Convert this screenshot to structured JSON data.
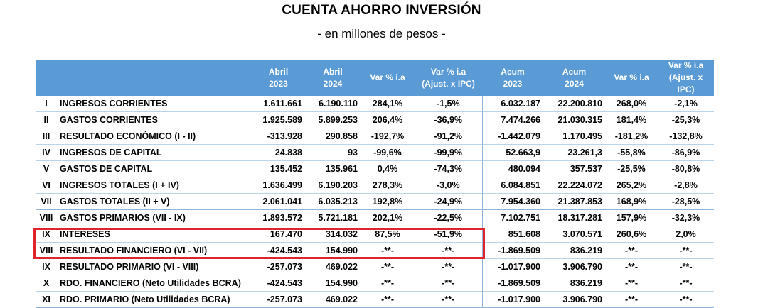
{
  "title": "CUENTA AHORRO INVERSIÓN",
  "subtitle": "- en millones de pesos -",
  "headers": [
    [
      "Abril",
      "2023"
    ],
    [
      "Abril",
      "2024"
    ],
    [
      "Var % i.a"
    ],
    [
      "Var % i.a",
      "(Ajust. x IPC)"
    ],
    [
      "Acum",
      "2023"
    ],
    [
      "Acum",
      "2024"
    ],
    [
      "Var % i.a"
    ],
    [
      "Var % i.a",
      "(Ajust. x IPC)"
    ]
  ],
  "rows": [
    {
      "rom": "I",
      "label": "INGRESOS CORRIENTES",
      "v": [
        "1.611.661",
        "6.190.110",
        "284,1%",
        "-1,5%",
        "6.032.187",
        "22.200.810",
        "268,0%",
        "-2,1%"
      ]
    },
    {
      "rom": "II",
      "label": "GASTOS CORRIENTES",
      "v": [
        "1.925.589",
        "5.899.253",
        "206,4%",
        "-36,9%",
        "7.474.266",
        "21.030.315",
        "181,4%",
        "-25,3%"
      ]
    },
    {
      "rom": "III",
      "label": "RESULTADO ECONÓMICO (I - II)",
      "v": [
        "-313.928",
        "290.858",
        "-192,7%",
        "-91,2%",
        "-1.442.079",
        "1.170.495",
        "-181,2%",
        "-132,8%"
      ]
    },
    {
      "rom": "IV",
      "label": "INGRESOS DE CAPITAL",
      "v": [
        "24.838",
        "93",
        "-99,6%",
        "-99,9%",
        "52.663,9",
        "23.261,3",
        "-55,8%",
        "-86,9%"
      ]
    },
    {
      "rom": "V",
      "label": "GASTOS DE CAPITAL",
      "v": [
        "135.452",
        "135.961",
        "0,4%",
        "-74,3%",
        "480.094",
        "357.537",
        "-25,5%",
        "-80,8%"
      ]
    },
    {
      "rom": "VI",
      "label": "INGRESOS TOTALES (I + IV)",
      "v": [
        "1.636.499",
        "6.190.203",
        "278,3%",
        "-3,0%",
        "6.084.851",
        "22.224.072",
        "265,2%",
        "-2,8%"
      ]
    },
    {
      "rom": "VII",
      "label": "GASTOS TOTALES (II + V)",
      "v": [
        "2.061.041",
        "6.035.213",
        "192,8%",
        "-24,9%",
        "7.954.360",
        "21.387.853",
        "168,9%",
        "-28,5%"
      ]
    },
    {
      "rom": "VIII",
      "label": "GASTOS PRIMARIOS (VII - IX)",
      "v": [
        "1.893.572",
        "5.721.181",
        "202,1%",
        "-22,5%",
        "7.102.751",
        "18.317.281",
        "157,9%",
        "-32,3%"
      ]
    },
    {
      "rom": "IX",
      "label": "INTERESES",
      "v": [
        "167.470",
        "314.032",
        "87,5%",
        "-51,9%",
        "851.608",
        "3.070.571",
        "260,6%",
        "2,0%"
      ]
    },
    {
      "rom": "VIII",
      "label": "RESULTADO FINANCIERO (VI - VII)",
      "v": [
        "-424.543",
        "154.990",
        "-**-",
        "-**-",
        "-1.869.509",
        "836.219",
        "-**-",
        "-**-"
      ]
    },
    {
      "rom": "IX",
      "label": "RESULTADO PRIMARIO (VI - VIII)",
      "v": [
        "-257.073",
        "469.022",
        "-**-",
        "-**-",
        "-1.017.900",
        "3.906.790",
        "-**-",
        "-**-"
      ]
    },
    {
      "rom": "X",
      "label": "RDO. FINANCIERO (Neto Utilidades BCRA)",
      "v": [
        "-424.543",
        "154.990",
        "-**-",
        "-**-",
        "-1.869.509",
        "836.219",
        "-**-",
        "-**-"
      ]
    },
    {
      "rom": "XI",
      "label": "RDO. PRIMARIO (Neto Utilidades BCRA)",
      "v": [
        "-257.073",
        "469.022",
        "-**-",
        "-**-",
        "-1.017.900",
        "3.906.790",
        "-**-",
        "-**-"
      ]
    }
  ],
  "colors": {
    "header_bg": "#5a9bd5",
    "highlight_border": "#e0242d"
  }
}
